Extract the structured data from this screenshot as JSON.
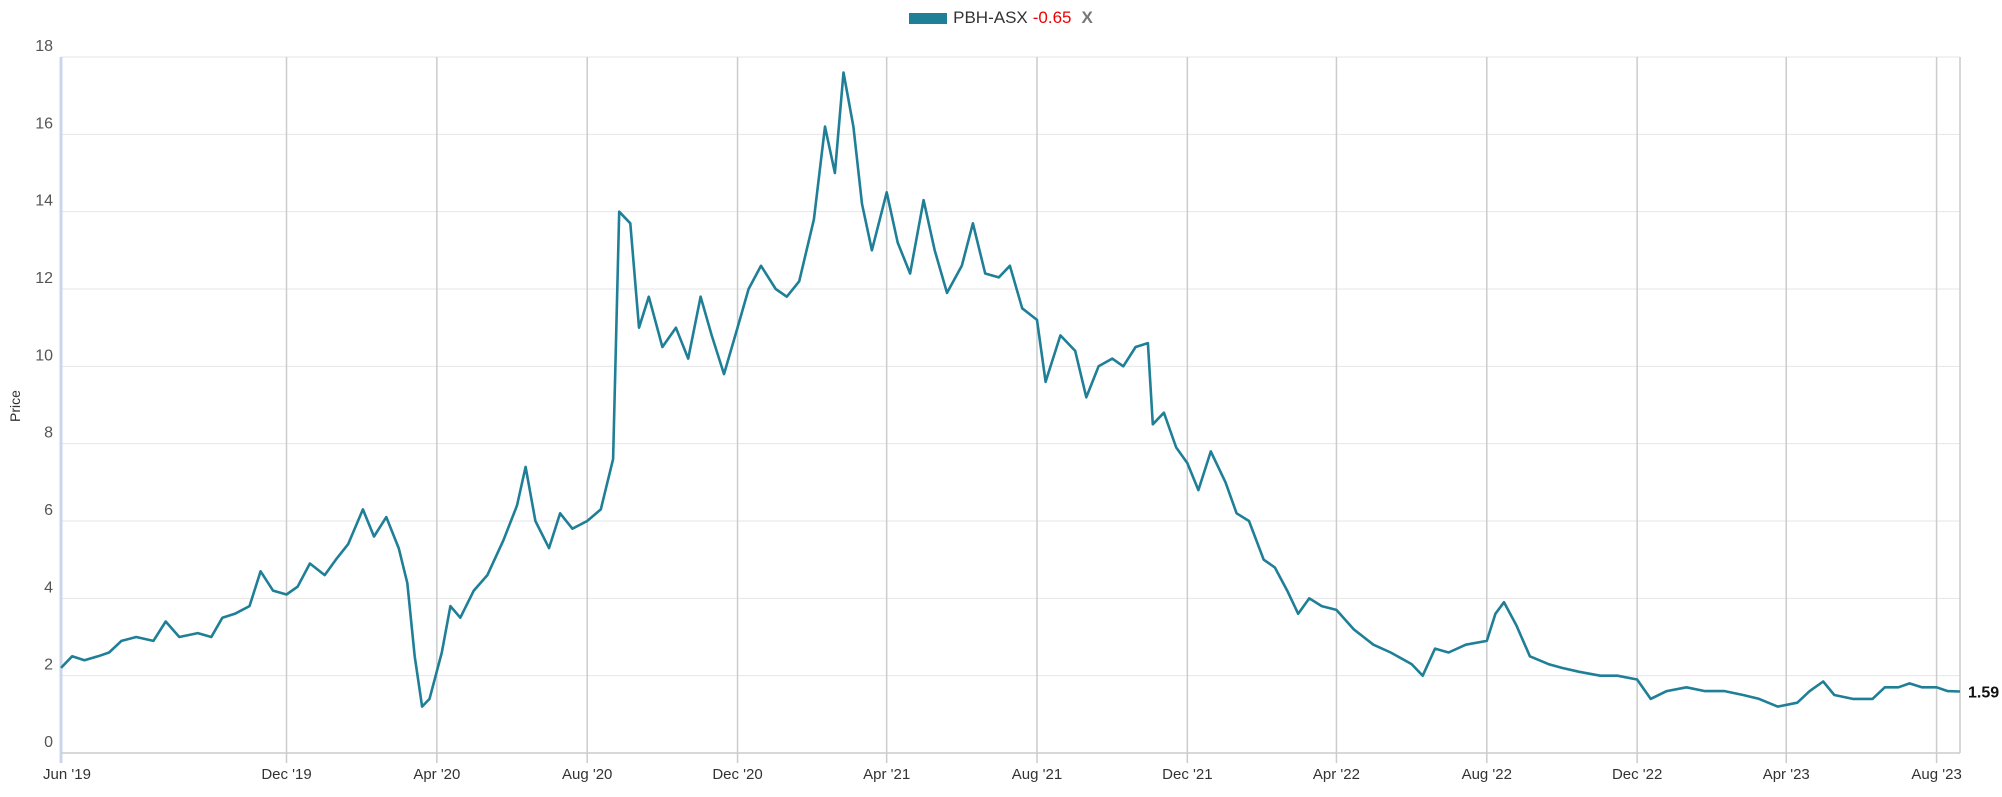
{
  "legend": {
    "series_name": "PBH-ASX",
    "change": "-0.65",
    "remove_label": "X"
  },
  "colors": {
    "line": "#1f7f97",
    "change": "#e00000"
  },
  "chart_data": {
    "type": "line",
    "title": "",
    "xlabel": "",
    "ylabel": "Price",
    "ylim": [
      0,
      18
    ],
    "xlim": [
      "2019-06-01",
      "2023-08-20"
    ],
    "yticks": [
      0,
      2,
      4,
      6,
      8,
      10,
      12,
      14,
      16,
      18
    ],
    "xticks": [
      {
        "date": "2019-06-01",
        "label": "Jun '19"
      },
      {
        "date": "2019-12-01",
        "label": "Dec '19"
      },
      {
        "date": "2020-04-01",
        "label": "Apr '20"
      },
      {
        "date": "2020-08-01",
        "label": "Aug '20"
      },
      {
        "date": "2020-12-01",
        "label": "Dec '20"
      },
      {
        "date": "2021-04-01",
        "label": "Apr '21"
      },
      {
        "date": "2021-08-01",
        "label": "Aug '21"
      },
      {
        "date": "2021-12-01",
        "label": "Dec '21"
      },
      {
        "date": "2022-04-01",
        "label": "Apr '22"
      },
      {
        "date": "2022-08-01",
        "label": "Aug '22"
      },
      {
        "date": "2022-12-01",
        "label": "Dec '22"
      },
      {
        "date": "2023-04-01",
        "label": "Apr '23"
      },
      {
        "date": "2023-08-01",
        "label": "Aug '23"
      }
    ],
    "grid": true,
    "last_value_label": "1.59",
    "series": [
      {
        "name": "PBH-ASX",
        "points": [
          [
            "2019-06-01",
            2.2
          ],
          [
            "2019-06-10",
            2.5
          ],
          [
            "2019-06-20",
            2.4
          ],
          [
            "2019-07-01",
            2.5
          ],
          [
            "2019-07-10",
            2.6
          ],
          [
            "2019-07-20",
            2.9
          ],
          [
            "2019-08-01",
            3.0
          ],
          [
            "2019-08-15",
            2.9
          ],
          [
            "2019-08-25",
            3.4
          ],
          [
            "2019-09-05",
            3.0
          ],
          [
            "2019-09-20",
            3.1
          ],
          [
            "2019-10-01",
            3.0
          ],
          [
            "2019-10-10",
            3.5
          ],
          [
            "2019-10-20",
            3.6
          ],
          [
            "2019-11-01",
            3.8
          ],
          [
            "2019-11-10",
            4.7
          ],
          [
            "2019-11-20",
            4.2
          ],
          [
            "2019-12-01",
            4.1
          ],
          [
            "2019-12-10",
            4.3
          ],
          [
            "2019-12-20",
            4.9
          ],
          [
            "2020-01-01",
            4.6
          ],
          [
            "2020-01-10",
            5.0
          ],
          [
            "2020-01-20",
            5.4
          ],
          [
            "2020-02-01",
            6.3
          ],
          [
            "2020-02-10",
            5.6
          ],
          [
            "2020-02-20",
            6.1
          ],
          [
            "2020-03-01",
            5.3
          ],
          [
            "2020-03-08",
            4.4
          ],
          [
            "2020-03-14",
            2.5
          ],
          [
            "2020-03-20",
            1.2
          ],
          [
            "2020-03-26",
            1.4
          ],
          [
            "2020-04-05",
            2.6
          ],
          [
            "2020-04-12",
            3.8
          ],
          [
            "2020-04-20",
            3.5
          ],
          [
            "2020-05-01",
            4.2
          ],
          [
            "2020-05-12",
            4.6
          ],
          [
            "2020-05-25",
            5.5
          ],
          [
            "2020-06-05",
            6.4
          ],
          [
            "2020-06-12",
            7.4
          ],
          [
            "2020-06-20",
            6.0
          ],
          [
            "2020-07-01",
            5.3
          ],
          [
            "2020-07-10",
            6.2
          ],
          [
            "2020-07-20",
            5.8
          ],
          [
            "2020-08-01",
            6.0
          ],
          [
            "2020-08-12",
            6.3
          ],
          [
            "2020-08-22",
            7.6
          ],
          [
            "2020-08-27",
            14.0
          ],
          [
            "2020-09-05",
            13.7
          ],
          [
            "2020-09-12",
            11.0
          ],
          [
            "2020-09-20",
            11.8
          ],
          [
            "2020-10-01",
            10.5
          ],
          [
            "2020-10-12",
            11.0
          ],
          [
            "2020-10-22",
            10.2
          ],
          [
            "2020-11-01",
            11.8
          ],
          [
            "2020-11-10",
            10.8
          ],
          [
            "2020-11-20",
            9.8
          ],
          [
            "2020-12-01",
            11.0
          ],
          [
            "2020-12-10",
            12.0
          ],
          [
            "2020-12-20",
            12.6
          ],
          [
            "2021-01-01",
            12.0
          ],
          [
            "2021-01-10",
            11.8
          ],
          [
            "2021-01-20",
            12.2
          ],
          [
            "2021-02-01",
            13.8
          ],
          [
            "2021-02-10",
            16.2
          ],
          [
            "2021-02-18",
            15.0
          ],
          [
            "2021-02-25",
            17.6
          ],
          [
            "2021-03-05",
            16.2
          ],
          [
            "2021-03-12",
            14.2
          ],
          [
            "2021-03-20",
            13.0
          ],
          [
            "2021-04-01",
            14.5
          ],
          [
            "2021-04-10",
            13.2
          ],
          [
            "2021-04-20",
            12.4
          ],
          [
            "2021-05-01",
            14.3
          ],
          [
            "2021-05-10",
            13.0
          ],
          [
            "2021-05-20",
            11.9
          ],
          [
            "2021-06-01",
            12.6
          ],
          [
            "2021-06-10",
            13.7
          ],
          [
            "2021-06-20",
            12.4
          ],
          [
            "2021-07-01",
            12.3
          ],
          [
            "2021-07-10",
            12.6
          ],
          [
            "2021-07-20",
            11.5
          ],
          [
            "2021-08-01",
            11.2
          ],
          [
            "2021-08-08",
            9.6
          ],
          [
            "2021-08-20",
            10.8
          ],
          [
            "2021-09-01",
            10.4
          ],
          [
            "2021-09-10",
            9.2
          ],
          [
            "2021-09-20",
            10.0
          ],
          [
            "2021-10-01",
            10.2
          ],
          [
            "2021-10-10",
            10.0
          ],
          [
            "2021-10-20",
            10.5
          ],
          [
            "2021-10-30",
            10.6
          ],
          [
            "2021-11-03",
            8.5
          ],
          [
            "2021-11-12",
            8.8
          ],
          [
            "2021-11-22",
            7.9
          ],
          [
            "2021-12-01",
            7.5
          ],
          [
            "2021-12-10",
            6.8
          ],
          [
            "2021-12-20",
            7.8
          ],
          [
            "2022-01-01",
            7.0
          ],
          [
            "2022-01-10",
            6.2
          ],
          [
            "2022-01-20",
            6.0
          ],
          [
            "2022-02-01",
            5.0
          ],
          [
            "2022-02-10",
            4.8
          ],
          [
            "2022-02-20",
            4.2
          ],
          [
            "2022-03-01",
            3.6
          ],
          [
            "2022-03-10",
            4.0
          ],
          [
            "2022-03-20",
            3.8
          ],
          [
            "2022-04-01",
            3.7
          ],
          [
            "2022-04-15",
            3.2
          ],
          [
            "2022-05-01",
            2.8
          ],
          [
            "2022-05-15",
            2.6
          ],
          [
            "2022-06-01",
            2.3
          ],
          [
            "2022-06-10",
            2.0
          ],
          [
            "2022-06-20",
            2.7
          ],
          [
            "2022-07-01",
            2.6
          ],
          [
            "2022-07-15",
            2.8
          ],
          [
            "2022-08-01",
            2.9
          ],
          [
            "2022-08-08",
            3.6
          ],
          [
            "2022-08-15",
            3.9
          ],
          [
            "2022-08-25",
            3.3
          ],
          [
            "2022-09-05",
            2.5
          ],
          [
            "2022-09-20",
            2.3
          ],
          [
            "2022-10-01",
            2.2
          ],
          [
            "2022-10-15",
            2.1
          ],
          [
            "2022-11-01",
            2.0
          ],
          [
            "2022-11-15",
            2.0
          ],
          [
            "2022-12-01",
            1.9
          ],
          [
            "2022-12-12",
            1.4
          ],
          [
            "2022-12-25",
            1.6
          ],
          [
            "2023-01-10",
            1.7
          ],
          [
            "2023-01-25",
            1.6
          ],
          [
            "2023-02-10",
            1.6
          ],
          [
            "2023-02-25",
            1.5
          ],
          [
            "2023-03-10",
            1.4
          ],
          [
            "2023-03-25",
            1.2
          ],
          [
            "2023-04-10",
            1.3
          ],
          [
            "2023-04-20",
            1.6
          ],
          [
            "2023-05-01",
            1.85
          ],
          [
            "2023-05-10",
            1.5
          ],
          [
            "2023-05-25",
            1.4
          ],
          [
            "2023-06-10",
            1.4
          ],
          [
            "2023-06-20",
            1.7
          ],
          [
            "2023-07-01",
            1.7
          ],
          [
            "2023-07-10",
            1.8
          ],
          [
            "2023-07-20",
            1.7
          ],
          [
            "2023-08-01",
            1.7
          ],
          [
            "2023-08-10",
            1.6
          ],
          [
            "2023-08-20",
            1.59
          ]
        ]
      }
    ]
  }
}
